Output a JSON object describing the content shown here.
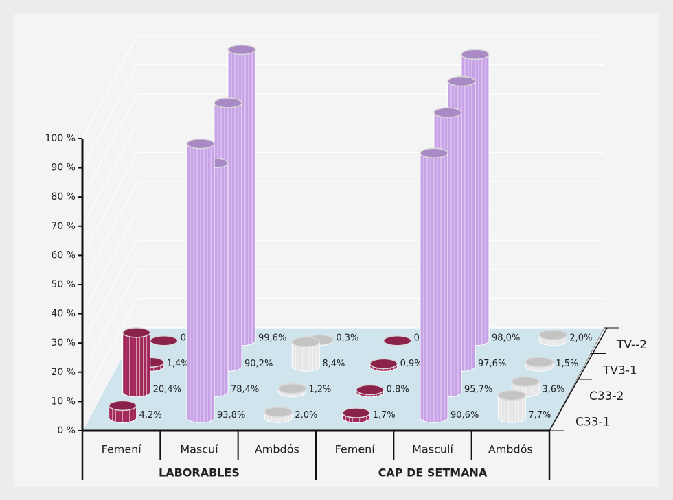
{
  "chart_data": {
    "type": "bar3d",
    "categories": [
      "Femení",
      "Mascuí",
      "Ambdós",
      "Femení",
      "Masculí",
      "Ambdós"
    ],
    "category_colors": [
      "#a3285a",
      "#c8a2e6",
      "#e6e6e6",
      "#a3285a",
      "#c8a2e6",
      "#e6e6e6"
    ],
    "groups": [
      "LABORABLES",
      "CAP DE SETMANA"
    ],
    "series": [
      {
        "name": "C33-1",
        "values": [
          4.2,
          93.8,
          2.0,
          1.7,
          90.6,
          7.7
        ],
        "value_labels": [
          "4,2%",
          "93,8%",
          "2,0%",
          "1,7%",
          "90,6%",
          "7,7%"
        ]
      },
      {
        "name": "C33-2",
        "values": [
          20.4,
          78.4,
          1.2,
          0.8,
          95.7,
          3.6
        ],
        "value_labels": [
          "20,4%",
          "78,4%",
          "1,2%",
          "0,8%",
          "95,7%",
          "3,6%"
        ]
      },
      {
        "name": "TV3-1",
        "values": [
          1.4,
          90.2,
          8.4,
          0.9,
          97.6,
          1.5
        ],
        "value_labels": [
          "1,4%",
          "90,2%",
          "8,4%",
          "0,9%",
          "97,6%",
          "1,5%"
        ]
      },
      {
        "name": "TV--2",
        "values": [
          0.0,
          99.6,
          0.3,
          0.0,
          98.0,
          2.0
        ],
        "value_labels": [
          "0,0%",
          "99,6%",
          "0,3%",
          "0,0%",
          "98,0%",
          "2,0%"
        ]
      }
    ],
    "ylim": [
      0,
      100
    ],
    "yticks": [
      {
        "value": 0,
        "label": "0 %"
      },
      {
        "value": 10,
        "label": "10 %"
      },
      {
        "value": 20,
        "label": "20 %"
      },
      {
        "value": 30,
        "label": "30 %"
      },
      {
        "value": 40,
        "label": "40 %"
      },
      {
        "value": 50,
        "label": "50 %"
      },
      {
        "value": 60,
        "label": "60 %"
      },
      {
        "value": 70,
        "label": "70 %"
      },
      {
        "value": 80,
        "label": "80 %"
      },
      {
        "value": 90,
        "label": "90 %"
      },
      {
        "value": 100,
        "label": "100 %"
      }
    ],
    "grid": true
  }
}
